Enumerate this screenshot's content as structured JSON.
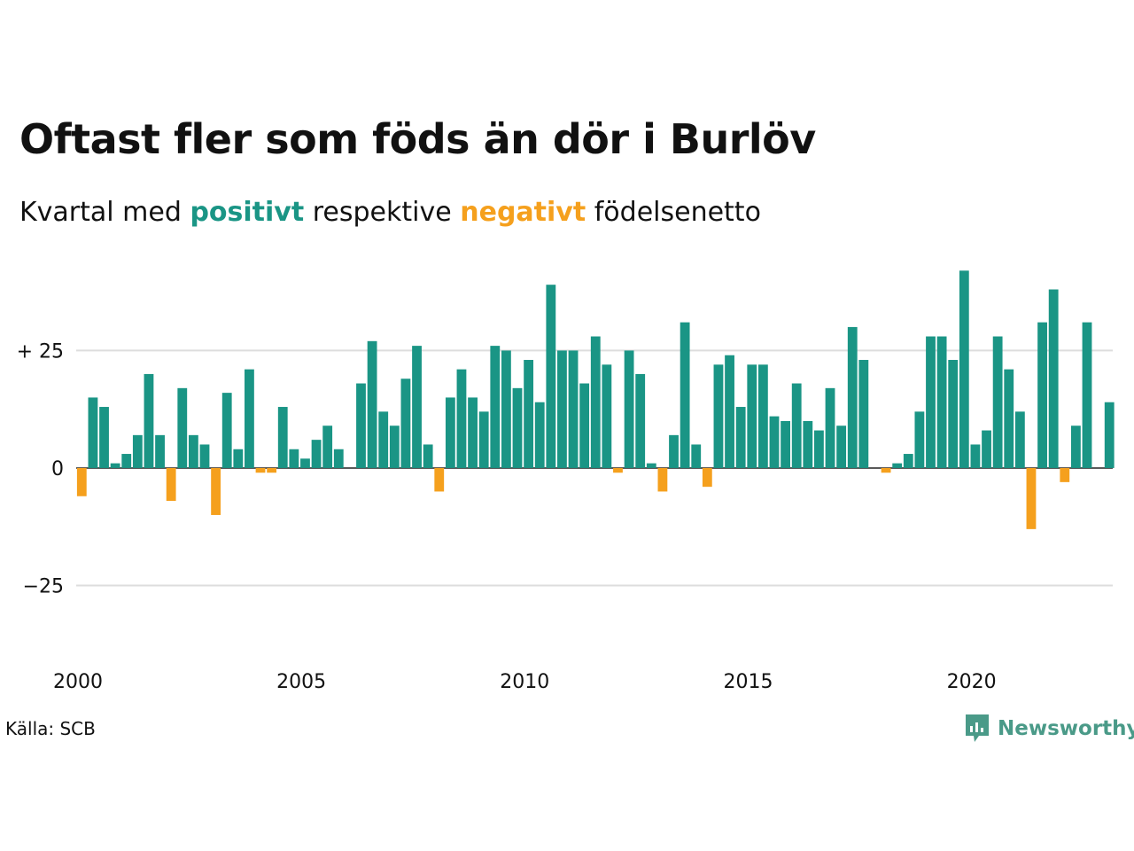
{
  "title": "Oftast fler som föds än dör i Burlöv",
  "subtitle": {
    "prefix": "Kvartal med",
    "positive_word": "positivt",
    "middle": "respektive",
    "negative_word": "negativt",
    "suffix": "födelsenetto"
  },
  "source": "Källa: SCB",
  "brand": {
    "name": "Newsworthy",
    "icon": "newsworthy-logo-icon",
    "color": "#4a9a88"
  },
  "colors": {
    "positive": "#1a9585",
    "negative": "#f5a01d",
    "grid": "#dddddd",
    "zero": "#222222"
  },
  "chart_data": {
    "type": "bar",
    "start_year": 2000,
    "quarters_per_year": 4,
    "y_ticks": [
      {
        "value": 25,
        "label": "+ 25"
      },
      {
        "value": 0,
        "label": "0"
      },
      {
        "value": -25,
        "label": "−25"
      }
    ],
    "x_ticks": [
      {
        "value": 2000,
        "label": "2000"
      },
      {
        "value": 2005,
        "label": "2005"
      },
      {
        "value": 2010,
        "label": "2010"
      },
      {
        "value": 2015,
        "label": "2015"
      },
      {
        "value": 2020,
        "label": "2020"
      }
    ],
    "ylim": [
      -40,
      43
    ],
    "xlim": [
      2000,
      2023.2
    ],
    "grid": true,
    "values": [
      -6,
      15,
      13,
      1,
      3,
      7,
      20,
      7,
      -7,
      17,
      7,
      5,
      -10,
      16,
      4,
      21,
      -1,
      -1,
      13,
      4,
      2,
      6,
      9,
      4,
      0,
      18,
      27,
      12,
      9,
      19,
      26,
      5,
      -5,
      15,
      21,
      15,
      12,
      26,
      25,
      17,
      23,
      14,
      39,
      25,
      25,
      18,
      28,
      22,
      -1,
      25,
      20,
      1,
      -5,
      7,
      31,
      5,
      -4,
      22,
      24,
      13,
      22,
      22,
      11,
      10,
      18,
      10,
      8,
      17,
      9,
      30,
      23,
      0,
      -1,
      1,
      3,
      12,
      28,
      28,
      23,
      42,
      5,
      8,
      28,
      21,
      12,
      -13,
      31,
      38,
      -3,
      9,
      31,
      0,
      14
    ]
  }
}
